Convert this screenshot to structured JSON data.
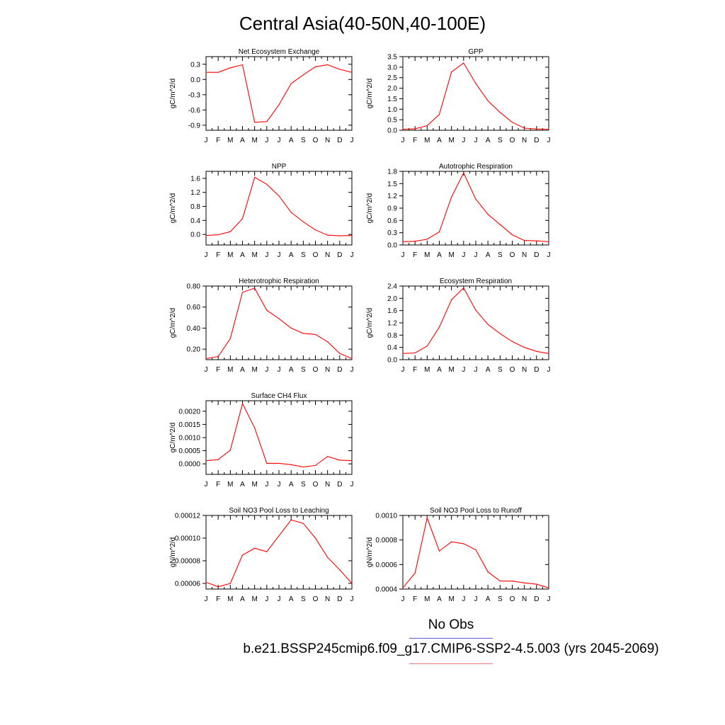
{
  "title": "Central Asia(40-50N,40-100E)",
  "legend": {
    "obs_label": "No Obs",
    "obs_color": "#5b5bdc",
    "model_label": "b.e21.BSSP245cmip6.f09_g17.CMIP6-SSP2-4.5.003 (yrs 2045-2069)",
    "model_color": "#ff0000"
  },
  "chart_data": [
    {
      "type": "line",
      "title": "Net Ecosystem Exchange",
      "ylabel": "gC/m^2/d",
      "categories": [
        "J",
        "F",
        "M",
        "A",
        "M",
        "J",
        "J",
        "A",
        "S",
        "O",
        "N",
        "D",
        "J"
      ],
      "ylim": [
        -1.0,
        0.45
      ],
      "yticks": [
        0.3,
        0.0,
        -0.3,
        -0.6,
        -0.9
      ],
      "yticklabels": [
        "0.3",
        "0.0",
        "-0.3",
        "-0.6",
        "-0.9"
      ],
      "series": [
        {
          "values": [
            0.14,
            0.14,
            0.23,
            0.29,
            -0.84,
            -0.83,
            -0.5,
            -0.08,
            0.09,
            0.25,
            0.29,
            0.2,
            0.14
          ]
        }
      ]
    },
    {
      "type": "line",
      "title": "GPP",
      "ylabel": "gC/m^2/d",
      "categories": [
        "J",
        "F",
        "M",
        "A",
        "M",
        "J",
        "J",
        "A",
        "S",
        "O",
        "N",
        "D",
        "J"
      ],
      "ylim": [
        0,
        3.5
      ],
      "yticks": [
        0.0,
        0.5,
        1.0,
        1.5,
        2.0,
        2.5,
        3.0,
        3.5
      ],
      "yticklabels": [
        "0.0",
        "0.5",
        "1.0",
        "1.5",
        "2.0",
        "2.5",
        "3.0",
        "3.5"
      ],
      "series": [
        {
          "values": [
            0.05,
            0.07,
            0.22,
            0.75,
            2.77,
            3.2,
            2.22,
            1.4,
            0.85,
            0.38,
            0.1,
            0.06,
            0.05
          ]
        }
      ]
    },
    {
      "type": "line",
      "title": "NPP",
      "ylabel": "gC/m^2/d",
      "categories": [
        "J",
        "F",
        "M",
        "A",
        "M",
        "J",
        "J",
        "A",
        "S",
        "O",
        "N",
        "D",
        "J"
      ],
      "ylim": [
        -0.3,
        1.8
      ],
      "yticks": [
        0.0,
        0.4,
        0.8,
        1.2,
        1.6
      ],
      "yticklabels": [
        "0.0",
        "0.4",
        "0.8",
        "1.2",
        "1.6"
      ],
      "series": [
        {
          "values": [
            -0.03,
            -0.01,
            0.08,
            0.45,
            1.63,
            1.43,
            1.1,
            0.63,
            0.36,
            0.13,
            -0.02,
            -0.04,
            -0.03
          ]
        }
      ]
    },
    {
      "type": "line",
      "title": "Autotrophic Respiration",
      "ylabel": "gC/m^2/d",
      "categories": [
        "J",
        "F",
        "M",
        "A",
        "M",
        "J",
        "J",
        "A",
        "S",
        "O",
        "N",
        "D",
        "J"
      ],
      "ylim": [
        0,
        1.8
      ],
      "yticks": [
        0.0,
        0.3,
        0.6,
        0.9,
        1.2,
        1.5,
        1.8
      ],
      "yticklabels": [
        "0.0",
        "0.3",
        "0.6",
        "0.9",
        "1.2",
        "1.5",
        "1.8"
      ],
      "series": [
        {
          "values": [
            0.08,
            0.09,
            0.14,
            0.32,
            1.17,
            1.76,
            1.12,
            0.75,
            0.5,
            0.25,
            0.11,
            0.1,
            0.08
          ]
        }
      ]
    },
    {
      "type": "line",
      "title": "Heterotrophic Respiration",
      "ylabel": "gC/m^2/d",
      "categories": [
        "J",
        "F",
        "M",
        "A",
        "M",
        "J",
        "J",
        "A",
        "S",
        "O",
        "N",
        "D",
        "J"
      ],
      "ylim": [
        0.1,
        0.8
      ],
      "yticks": [
        0.2,
        0.4,
        0.6,
        0.8
      ],
      "yticklabels": [
        "0.20",
        "0.40",
        "0.60",
        "0.80"
      ],
      "series": [
        {
          "values": [
            0.11,
            0.13,
            0.3,
            0.74,
            0.78,
            0.57,
            0.49,
            0.4,
            0.35,
            0.34,
            0.27,
            0.16,
            0.11
          ]
        }
      ]
    },
    {
      "type": "line",
      "title": "Ecosystem Respiration",
      "ylabel": "gC/m^2/d",
      "categories": [
        "J",
        "F",
        "M",
        "A",
        "M",
        "J",
        "J",
        "A",
        "S",
        "O",
        "N",
        "D",
        "J"
      ],
      "ylim": [
        0,
        2.4
      ],
      "yticks": [
        0.0,
        0.4,
        0.8,
        1.2,
        1.6,
        2.0,
        2.4
      ],
      "yticklabels": [
        "0.0",
        "0.4",
        "0.8",
        "1.2",
        "1.6",
        "2.0",
        "2.4"
      ],
      "series": [
        {
          "values": [
            0.2,
            0.22,
            0.44,
            1.06,
            1.95,
            2.34,
            1.61,
            1.15,
            0.85,
            0.59,
            0.4,
            0.27,
            0.2
          ]
        }
      ]
    },
    {
      "type": "line",
      "title": "Surface CH4 Flux",
      "ylabel": "gC/m^2/d",
      "categories": [
        "J",
        "F",
        "M",
        "A",
        "M",
        "J",
        "J",
        "A",
        "S",
        "O",
        "N",
        "D",
        "J"
      ],
      "ylim": [
        -0.0004,
        0.0024
      ],
      "yticks": [
        0.0,
        0.0005,
        0.001,
        0.0015,
        0.002
      ],
      "yticklabels": [
        "0.0000",
        "0.0005",
        "0.0010",
        "0.0015",
        "0.0020"
      ],
      "series": [
        {
          "values": [
            0.00012,
            0.00016,
            0.00052,
            0.00229,
            0.00137,
            2e-05,
            2e-05,
            -3e-05,
            -0.00012,
            -6e-05,
            0.00028,
            0.00014,
            0.00012
          ]
        }
      ]
    },
    {
      "type": "line",
      "title": "Soil NO3 Pool Loss to Leaching",
      "ylabel": "gN/m^2/d",
      "categories": [
        "J",
        "F",
        "M",
        "A",
        "M",
        "J",
        "J",
        "A",
        "S",
        "O",
        "N",
        "D",
        "J"
      ],
      "ylim": [
        5.5e-05,
        0.00012
      ],
      "yticks": [
        6e-05,
        8e-05,
        0.0001,
        0.00012
      ],
      "yticklabels": [
        "0.00006",
        "0.00008",
        "0.00010",
        "0.00012"
      ],
      "series": [
        {
          "values": [
            6.1e-05,
            5.7e-05,
            6e-05,
            8.5e-05,
            9.1e-05,
            8.8e-05,
            0.000102,
            0.000116,
            0.000113,
            0.0001,
            8.3e-05,
            7.2e-05,
            6e-05
          ]
        }
      ]
    },
    {
      "type": "line",
      "title": "Soil NO3 Pool Loss to Runoff",
      "ylabel": "gN/m^2/d",
      "categories": [
        "J",
        "F",
        "M",
        "A",
        "M",
        "J",
        "J",
        "A",
        "S",
        "O",
        "N",
        "D",
        "J"
      ],
      "ylim": [
        0.0004,
        0.001
      ],
      "yticks": [
        0.0004,
        0.0006,
        0.0008,
        0.001
      ],
      "yticklabels": [
        "0.0004",
        "0.0006",
        "0.0008",
        "0.0010"
      ],
      "series": [
        {
          "values": [
            0.00041,
            0.00053,
            0.00098,
            0.00071,
            0.000785,
            0.00077,
            0.00072,
            0.00054,
            0.000465,
            0.000465,
            0.00045,
            0.00044,
            0.00041
          ]
        }
      ]
    }
  ]
}
